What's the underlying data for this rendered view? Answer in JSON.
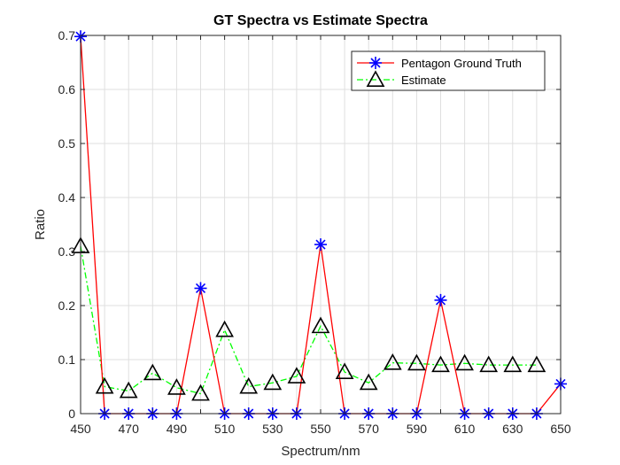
{
  "chart_data": {
    "type": "line",
    "title": "GT Spectra vs Estimate Spectra",
    "xlabel": "Spectrum/nm",
    "ylabel": "Ratio",
    "xlim": [
      450,
      650
    ],
    "ylim": [
      0,
      0.7
    ],
    "xticks": [
      450,
      470,
      490,
      510,
      530,
      550,
      570,
      590,
      610,
      630,
      650
    ],
    "yticks": [
      0,
      0.1,
      0.2,
      0.3,
      0.4,
      0.5,
      0.6,
      0.7
    ],
    "grid": true,
    "legend_position": "top-right",
    "series": [
      {
        "name": "Pentagon Ground Truth",
        "color": "#ff0000",
        "marker_color": "#0000ff",
        "marker": "asterisk",
        "line_style": "solid",
        "x": [
          450,
          460,
          470,
          480,
          490,
          500,
          510,
          520,
          530,
          540,
          550,
          560,
          570,
          580,
          590,
          600,
          610,
          620,
          630,
          640,
          650
        ],
        "values": [
          0.698,
          0,
          0,
          0,
          0,
          0.232,
          0,
          0,
          0,
          0,
          0.313,
          0,
          0,
          0,
          0,
          0.21,
          0,
          0,
          0,
          0,
          0.055
        ]
      },
      {
        "name": "Estimate",
        "color": "#00ff00",
        "marker_color": "#000000",
        "marker": "triangle",
        "line_style": "dash-dot",
        "x": [
          450,
          460,
          470,
          480,
          490,
          500,
          510,
          520,
          530,
          540,
          550,
          560,
          570,
          580,
          590,
          600,
          610,
          620,
          630,
          640
        ],
        "values": [
          0.31,
          0.05,
          0.042,
          0.075,
          0.048,
          0.037,
          0.155,
          0.05,
          0.057,
          0.069,
          0.162,
          0.077,
          0.057,
          0.094,
          0.093,
          0.09,
          0.093,
          0.09,
          0.09,
          0.09
        ]
      }
    ]
  }
}
